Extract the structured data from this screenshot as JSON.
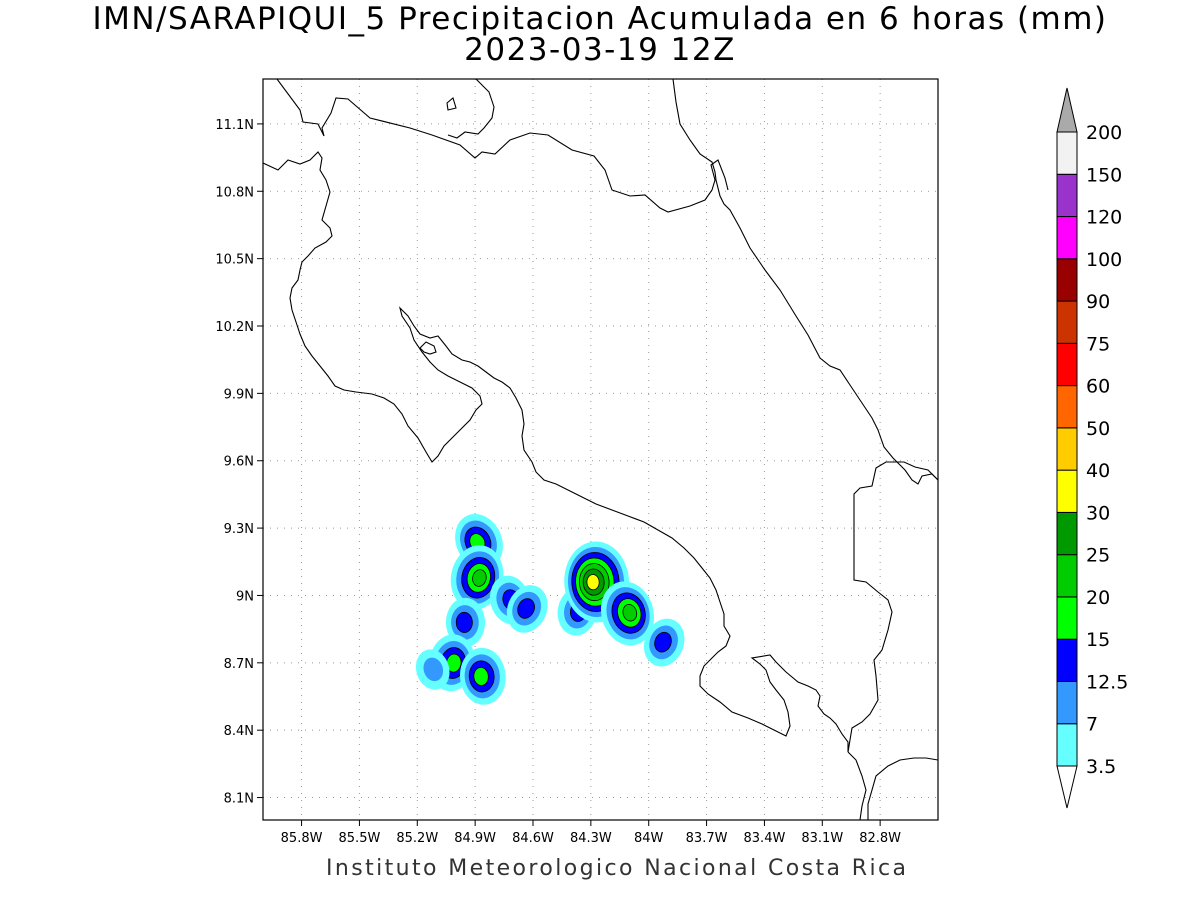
{
  "title": {
    "line1": "IMN/SARAPIQUI_5 Precipitacion Acumulada en 6 horas (mm)",
    "line2": "2023-03-19 12Z"
  },
  "footer": "Instituto Meteorologico Nacional Costa Rica",
  "map": {
    "lon_range": [
      -86.0,
      -82.5
    ],
    "lat_range": [
      8.0,
      11.3
    ],
    "lon_ticks": [
      {
        "value": -85.8,
        "label": "85.8W"
      },
      {
        "value": -85.5,
        "label": "85.5W"
      },
      {
        "value": -85.2,
        "label": "85.2W"
      },
      {
        "value": -84.9,
        "label": "84.9W"
      },
      {
        "value": -84.6,
        "label": "84.6W"
      },
      {
        "value": -84.3,
        "label": "84.3W"
      },
      {
        "value": -84.0,
        "label": "84W"
      },
      {
        "value": -83.7,
        "label": "83.7W"
      },
      {
        "value": -83.4,
        "label": "83.4W"
      },
      {
        "value": -83.1,
        "label": "83.1W"
      },
      {
        "value": -82.8,
        "label": "82.8W"
      }
    ],
    "lat_ticks": [
      {
        "value": 11.1,
        "label": "11.1N"
      },
      {
        "value": 10.8,
        "label": "10.8N"
      },
      {
        "value": 10.5,
        "label": "10.5N"
      },
      {
        "value": 10.2,
        "label": "10.2N"
      },
      {
        "value": 9.9,
        "label": "9.9N"
      },
      {
        "value": 9.6,
        "label": "9.6N"
      },
      {
        "value": 9.3,
        "label": "9.3N"
      },
      {
        "value": 9.0,
        "label": "9N"
      },
      {
        "value": 8.7,
        "label": "8.7N"
      },
      {
        "value": 8.4,
        "label": "8.4N"
      },
      {
        "value": 8.1,
        "label": "8.1N"
      }
    ],
    "grid": true,
    "coastline_color": "#000000"
  },
  "colorbar": {
    "levels": [
      {
        "label": "3.5",
        "color": "#66ffff"
      },
      {
        "label": "7",
        "color": "#3399ff"
      },
      {
        "label": "12.5",
        "color": "#0000ff"
      },
      {
        "label": "15",
        "color": "#00ff00"
      },
      {
        "label": "20",
        "color": "#00cc00"
      },
      {
        "label": "25",
        "color": "#009900"
      },
      {
        "label": "30",
        "color": "#ffff00"
      },
      {
        "label": "40",
        "color": "#ffcc00"
      },
      {
        "label": "50",
        "color": "#ff6600"
      },
      {
        "label": "60",
        "color": "#ff0000"
      },
      {
        "label": "75",
        "color": "#cc3300"
      },
      {
        "label": "90",
        "color": "#990000"
      },
      {
        "label": "100",
        "color": "#ff00ff"
      },
      {
        "label": "120",
        "color": "#9933cc"
      },
      {
        "label": "150",
        "color": "#f2f2f2"
      },
      {
        "label": "200",
        "color": "#aaaaaa"
      }
    ],
    "bottom_color": "#ffffff",
    "top_color": "#aaaaaa"
  },
  "precip_cells": [
    {
      "lon": -84.88,
      "lat": 9.24,
      "peak_mm": 15
    },
    {
      "lon": -84.89,
      "lat": 9.08,
      "peak_mm": 20
    },
    {
      "lon": -84.95,
      "lat": 8.88,
      "peak_mm": 12.5
    },
    {
      "lon": -84.72,
      "lat": 8.98,
      "peak_mm": 12.5
    },
    {
      "lon": -84.63,
      "lat": 8.94,
      "peak_mm": 12.5
    },
    {
      "lon": -84.37,
      "lat": 8.93,
      "peak_mm": 12.5
    },
    {
      "lon": -84.27,
      "lat": 9.06,
      "peak_mm": 30
    },
    {
      "lon": -84.11,
      "lat": 8.92,
      "peak_mm": 20
    },
    {
      "lon": -83.92,
      "lat": 8.79,
      "peak_mm": 12.5
    },
    {
      "lon": -85.02,
      "lat": 8.7,
      "peak_mm": 15
    },
    {
      "lon": -84.86,
      "lat": 8.64,
      "peak_mm": 15
    },
    {
      "lon": -85.12,
      "lat": 8.67,
      "peak_mm": 7
    }
  ]
}
